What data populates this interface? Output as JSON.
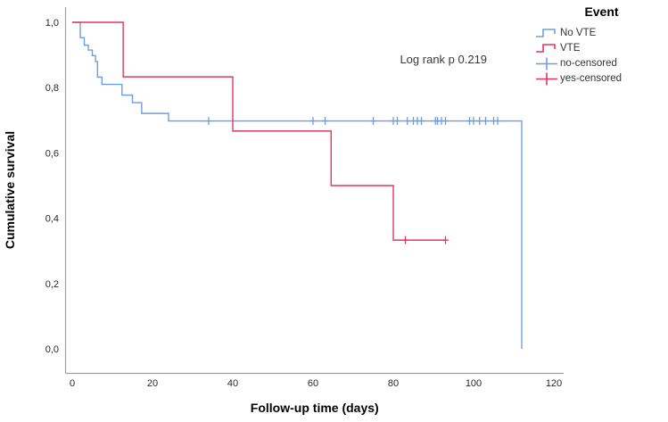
{
  "figure_title": "",
  "legend": {
    "title": "Event",
    "items": [
      {
        "label": "No VTE",
        "glyph": "step",
        "color": "#6f9de2"
      },
      {
        "label": "VTE",
        "glyph": "step",
        "color": "#e0395f"
      },
      {
        "label": "no-censored",
        "glyph": "cross",
        "color": "#6f9de2"
      },
      {
        "label": "yes-censored",
        "glyph": "cross",
        "color": "#e0395f"
      }
    ]
  },
  "chart_data": {
    "type": "line",
    "subtype": "kaplan-meier-step",
    "title": "",
    "xlabel": "Follow-up time (days)",
    "ylabel": "Cumulative survival",
    "xlim": [
      0,
      120
    ],
    "ylim": [
      0.0,
      1.0
    ],
    "grid": false,
    "legend_position": "top-right",
    "decimal_separator": ",",
    "x_ticks": [
      {
        "value": 0,
        "label": "0"
      },
      {
        "value": 20,
        "label": "20"
      },
      {
        "value": 40,
        "label": "40"
      },
      {
        "value": 60,
        "label": "60"
      },
      {
        "value": 80,
        "label": "80"
      },
      {
        "value": 100,
        "label": "100"
      },
      {
        "value": 120,
        "label": "120"
      }
    ],
    "y_ticks": [
      {
        "value": 0.0,
        "label": "0,0"
      },
      {
        "value": 0.2,
        "label": "0,2"
      },
      {
        "value": 0.4,
        "label": "0,4"
      },
      {
        "value": 0.6,
        "label": "0,6"
      },
      {
        "value": 0.8,
        "label": "0,8"
      },
      {
        "value": 1.0,
        "label": "1,0"
      }
    ],
    "annotation": {
      "text": "Log rank p 0.219",
      "x": 92.5,
      "y": 0.885
    },
    "series": [
      {
        "name": "No VTE",
        "color": "#6f9de2",
        "start": [
          0,
          1.0
        ],
        "steps": [
          [
            2,
            0.953
          ],
          [
            3,
            0.93
          ],
          [
            4,
            0.915
          ],
          [
            5,
            0.898
          ],
          [
            5.8,
            0.88
          ],
          [
            6.3,
            0.832
          ],
          [
            7.4,
            0.81
          ],
          [
            12.4,
            0.777
          ],
          [
            15,
            0.754
          ],
          [
            17.3,
            0.721
          ],
          [
            24,
            0.698
          ],
          [
            112,
            0.0
          ]
        ],
        "end_x": 112,
        "censored": [
          [
            34,
            0.698
          ],
          [
            60,
            0.698
          ],
          [
            63,
            0.698
          ],
          [
            75,
            0.698
          ],
          [
            80,
            0.698
          ],
          [
            81,
            0.698
          ],
          [
            83.5,
            0.698
          ],
          [
            85,
            0.698
          ],
          [
            86,
            0.698
          ],
          [
            87,
            0.698
          ],
          [
            90.5,
            0.698
          ],
          [
            91,
            0.698
          ],
          [
            92,
            0.698
          ],
          [
            93,
            0.698
          ],
          [
            99,
            0.698
          ],
          [
            100,
            0.698
          ],
          [
            101.5,
            0.698
          ],
          [
            103,
            0.698
          ],
          [
            105,
            0.698
          ],
          [
            106,
            0.698
          ]
        ]
      },
      {
        "name": "VTE",
        "color": "#e0395f",
        "start": [
          0,
          1.0
        ],
        "steps": [
          [
            12.7,
            0.833
          ],
          [
            40,
            0.667
          ],
          [
            64.5,
            0.5
          ],
          [
            80,
            0.333
          ]
        ],
        "end_x": 93,
        "censored": [
          [
            83,
            0.333
          ],
          [
            93,
            0.333
          ]
        ]
      }
    ]
  }
}
